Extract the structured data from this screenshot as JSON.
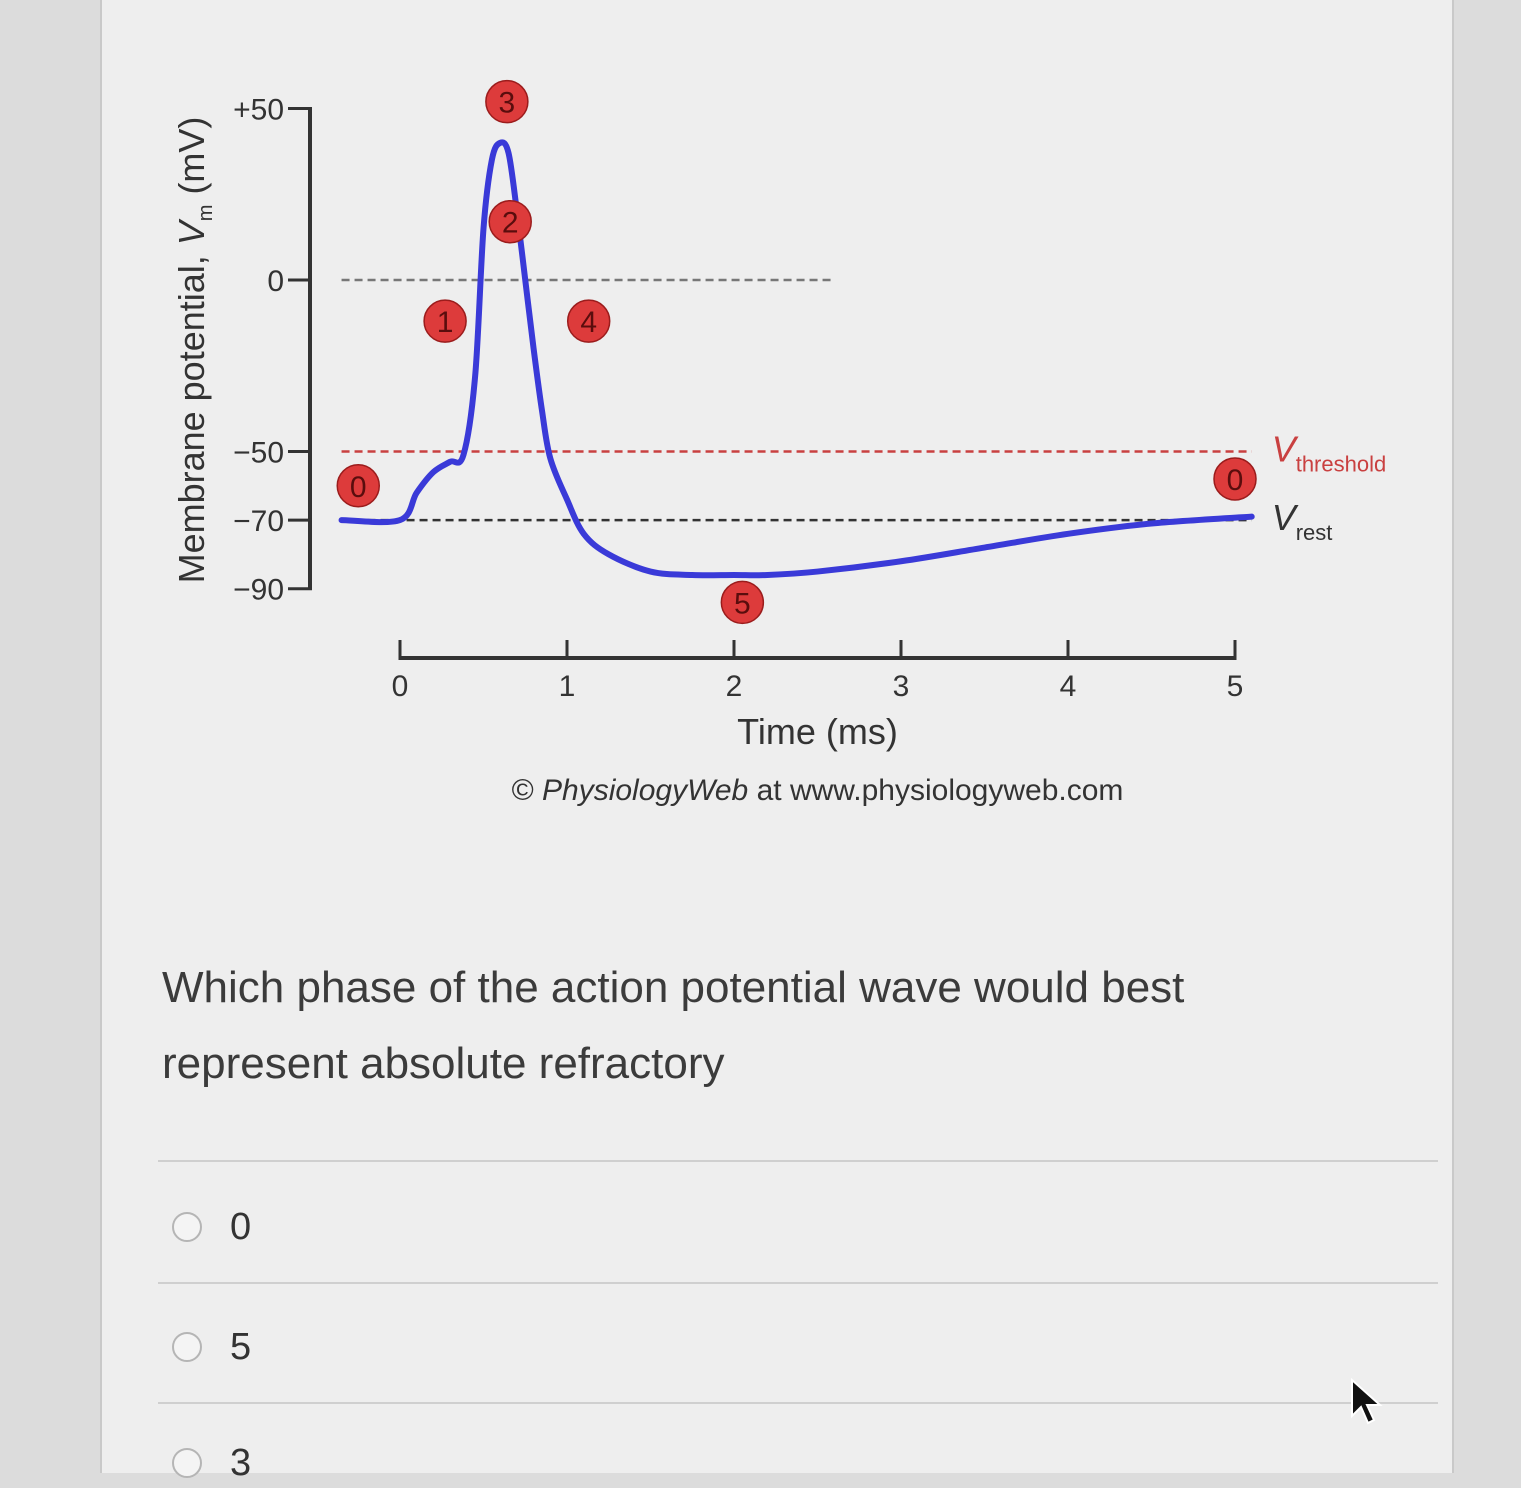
{
  "chart_data": {
    "type": "line",
    "ylabel": "Membrane potential, V",
    "ylabel_sub": "m",
    "ylabel_unit": " (mV)",
    "xlabel": "Time (ms)",
    "y_ticks": [
      "+50",
      "0",
      "−50",
      "−70",
      "−90"
    ],
    "y_tick_values": [
      50,
      0,
      -50,
      -70,
      -90
    ],
    "x_ticks": [
      "0",
      "1",
      "2",
      "3",
      "4",
      "5"
    ],
    "x_tick_values": [
      0,
      1,
      2,
      3,
      4,
      5
    ],
    "ylim": [
      -90,
      50
    ],
    "xlim": [
      0,
      5
    ],
    "series": [
      {
        "color": "#3a3ad8",
        "x": [
          -0.35,
          0.0,
          0.1,
          0.2,
          0.3,
          0.38,
          0.45,
          0.5,
          0.55,
          0.6,
          0.65,
          0.7,
          0.75,
          0.8,
          0.85,
          0.9,
          1.0,
          1.1,
          1.25,
          1.5,
          1.75,
          2.0,
          2.2,
          2.5,
          3.0,
          3.5,
          4.0,
          4.5,
          5.1
        ],
        "y": [
          -70,
          -70,
          -62,
          -56,
          -53,
          -51,
          -28,
          15,
          35,
          40,
          37,
          20,
          0,
          -20,
          -38,
          -52,
          -64,
          -74,
          -80,
          -85,
          -86,
          -86,
          -86,
          -85,
          -82,
          -78,
          -74,
          -71,
          -69
        ]
      }
    ],
    "reference_lines": [
      {
        "y": 0,
        "color": "#777777",
        "x_range": [
          -0.35,
          2.6
        ]
      },
      {
        "y": -50,
        "label_main": "V",
        "label_sub": "threshold",
        "color": "#c94040",
        "x_range": [
          -0.35,
          5.1
        ]
      },
      {
        "y": -70,
        "label_main": "V",
        "label_sub": "rest",
        "color": "#333333",
        "x_range": [
          -0.35,
          5.1
        ]
      }
    ],
    "phase_markers": [
      {
        "label": "0",
        "x": -0.25,
        "y": -60
      },
      {
        "label": "1",
        "x": 0.27,
        "y": -12
      },
      {
        "label": "2",
        "x": 0.66,
        "y": 17
      },
      {
        "label": "3",
        "x": 0.64,
        "y": 52
      },
      {
        "label": "4",
        "x": 1.13,
        "y": -12
      },
      {
        "label": "5",
        "x": 2.05,
        "y": -94
      },
      {
        "label": "0",
        "x": 5.0,
        "y": -58
      }
    ],
    "marker_color": "#dd3b3b",
    "credit_symbol": "©",
    "credit_italic": "PhysiologyWeb",
    "credit_rest": " at www.physiologyweb.com"
  },
  "question": {
    "text": "Which phase of the action potential wave would best represent absolute refractory"
  },
  "options": [
    {
      "label": "0"
    },
    {
      "label": "5"
    },
    {
      "label": "3"
    }
  ]
}
